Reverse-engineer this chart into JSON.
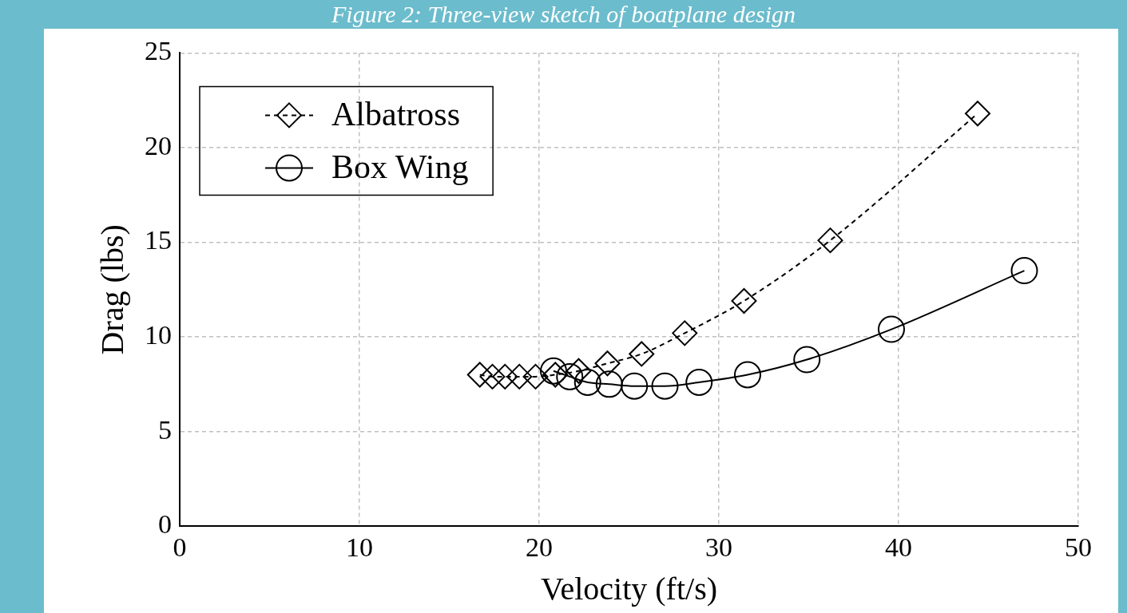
{
  "chart_data": {
    "type": "line",
    "title": "Figure 2: Three-view sketch of boatplane design",
    "xlabel": "Velocity (ft/s)",
    "ylabel": "Drag (lbs)",
    "xlim": [
      0,
      50
    ],
    "xticks": [
      0,
      10,
      20,
      30,
      40,
      50
    ],
    "ylim": [
      0,
      25
    ],
    "yticks": [
      0,
      5,
      10,
      15,
      20,
      25
    ],
    "grid": true,
    "legend": "top left",
    "series": [
      {
        "name": "Albatross",
        "color": "#000000",
        "marker": "diamond",
        "line_style": "dashed",
        "x": [
          16.7,
          17.4,
          18.1,
          18.9,
          19.8,
          20.9,
          22.2,
          23.8,
          25.7,
          28.1,
          31.4,
          36.2,
          44.4
        ],
        "values": [
          8.0,
          7.9,
          7.9,
          7.9,
          7.9,
          8.0,
          8.2,
          8.6,
          9.1,
          10.2,
          11.9,
          15.1,
          21.8
        ]
      },
      {
        "name": "Box Wing",
        "color": "#000000",
        "marker": "circle",
        "line_style": "solid",
        "x": [
          20.8,
          21.7,
          22.7,
          23.9,
          25.3,
          27.0,
          28.9,
          31.6,
          34.9,
          39.6,
          47.0
        ],
        "values": [
          8.2,
          7.9,
          7.6,
          7.5,
          7.4,
          7.4,
          7.6,
          8.0,
          8.8,
          10.4,
          13.5
        ]
      }
    ]
  }
}
